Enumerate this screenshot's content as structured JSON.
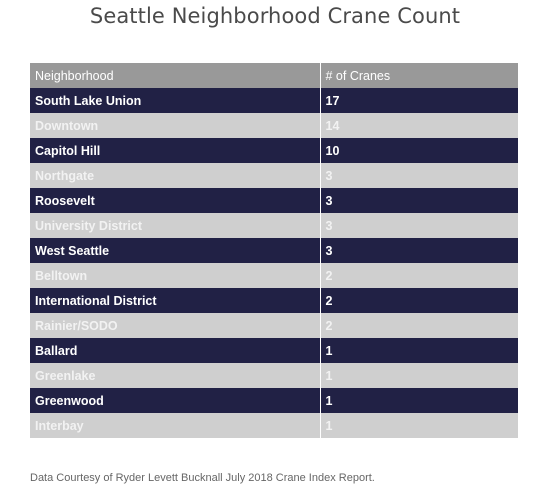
{
  "chart_data": {
    "type": "table",
    "title": "Seattle Neighborhood Crane Count",
    "columns": [
      "Neighborhood",
      "# of Cranes"
    ],
    "rows": [
      {
        "neighborhood": "South Lake Union",
        "cranes": "17"
      },
      {
        "neighborhood": "Downtown",
        "cranes": "14"
      },
      {
        "neighborhood": "Capitol Hill",
        "cranes": "10"
      },
      {
        "neighborhood": "Northgate",
        "cranes": "3"
      },
      {
        "neighborhood": "Roosevelt",
        "cranes": "3"
      },
      {
        "neighborhood": "University District",
        "cranes": "3"
      },
      {
        "neighborhood": "West Seattle",
        "cranes": "3"
      },
      {
        "neighborhood": "Belltown",
        "cranes": "2"
      },
      {
        "neighborhood": "International District",
        "cranes": "2"
      },
      {
        "neighborhood": "Rainier/SODO",
        "cranes": "2"
      },
      {
        "neighborhood": "Ballard",
        "cranes": "1"
      },
      {
        "neighborhood": "Greenlake",
        "cranes": "1"
      },
      {
        "neighborhood": "Greenwood",
        "cranes": "1"
      },
      {
        "neighborhood": "Interbay",
        "cranes": "1"
      }
    ],
    "source": "Data Courtesy of Ryder Levett Bucknall July 2018 Crane Index Report.",
    "colors": {
      "header": "#999999",
      "row_dark": "#212145",
      "row_light": "#cfcfcf",
      "title_text": "#4a4a4a"
    }
  }
}
